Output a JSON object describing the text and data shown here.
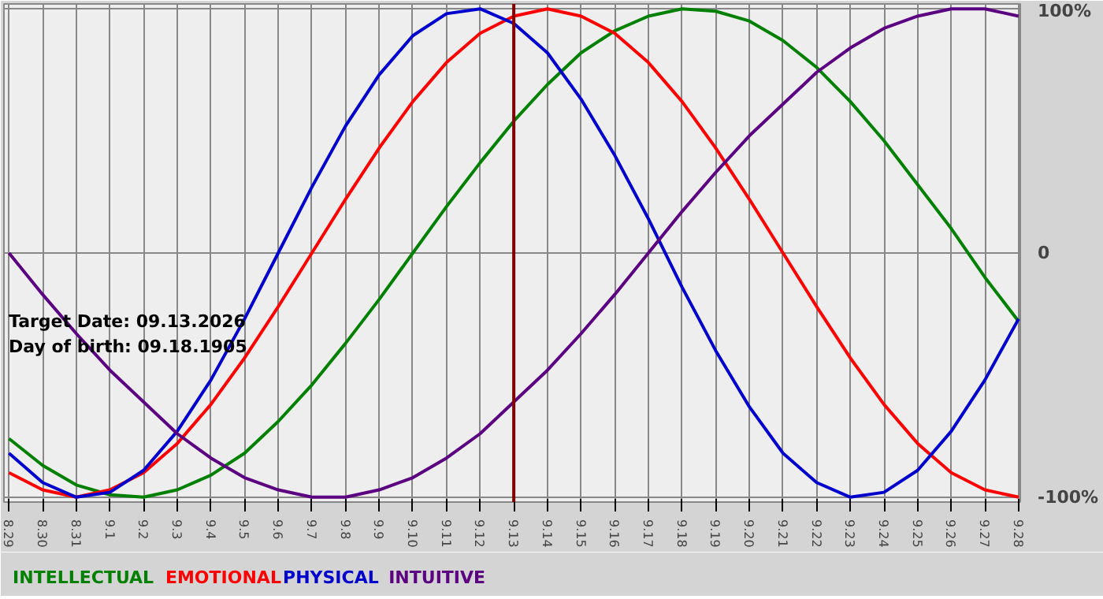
{
  "chart_data": {
    "type": "line",
    "categories": [
      "8.29",
      "8.30",
      "8.31",
      "9.1",
      "9.2",
      "9.3",
      "9.4",
      "9.5",
      "9.6",
      "9.7",
      "9.8",
      "9.9",
      "9.10",
      "9.11",
      "9.12",
      "9.13",
      "9.14",
      "9.15",
      "9.16",
      "9.17",
      "9.18",
      "9.19",
      "9.20",
      "9.21",
      "9.22",
      "9.23",
      "9.24",
      "9.25",
      "9.26",
      "9.27",
      "9.28"
    ],
    "series": [
      {
        "name": "INTELLECTUAL",
        "color": "#008000",
        "values": [
          -76,
          -87,
          -95,
          -99,
          -100,
          -97,
          -91,
          -82,
          -69,
          -54,
          -37,
          -19,
          0,
          19,
          37,
          54,
          69,
          82,
          91,
          97,
          100,
          99,
          95,
          87,
          76,
          62,
          46,
          28,
          10,
          -10,
          -28
        ]
      },
      {
        "name": "EMOTIONAL",
        "color": "#ff0000",
        "values": [
          -90,
          -97,
          -100,
          -97,
          -90,
          -78,
          -62,
          -43,
          -22,
          0,
          22,
          43,
          62,
          78,
          90,
          97,
          100,
          97,
          90,
          78,
          62,
          43,
          22,
          0,
          -22,
          -43,
          -62,
          -78,
          -90,
          -97,
          -100
        ]
      },
      {
        "name": "PHYSICAL",
        "color": "#0000cc",
        "values": [
          -82,
          -94,
          -100,
          -98,
          -89,
          -73,
          -52,
          -27,
          0,
          27,
          52,
          73,
          89,
          98,
          100,
          94,
          82,
          63,
          40,
          14,
          -14,
          -40,
          -63,
          -82,
          -94,
          -100,
          -98,
          -89,
          -73,
          -52,
          -27
        ]
      },
      {
        "name": "INTUITIVE",
        "color": "#5a0080",
        "values": [
          0,
          -17,
          -33,
          -48,
          -61,
          -74,
          -84,
          -92,
          -97,
          -100,
          -100,
          -97,
          -92,
          -84,
          -74,
          -61,
          -48,
          -33,
          -17,
          0,
          17,
          33,
          48,
          61,
          74,
          84,
          92,
          97,
          100,
          100,
          97
        ]
      }
    ],
    "ylim": [
      -102,
      102
    ],
    "yticks": [
      {
        "value": 100,
        "label": "100%"
      },
      0,
      {
        "value": -100,
        "label": "-100%"
      }
    ],
    "ref_lines": [
      {
        "axis": "x",
        "value": "9.13",
        "color": "#800000"
      }
    ],
    "annotations": [
      "Target Date: 09.13.2026",
      "Day of birth: 09.18.1905"
    ],
    "grid": true,
    "marker": "none",
    "line_style": "solid"
  }
}
